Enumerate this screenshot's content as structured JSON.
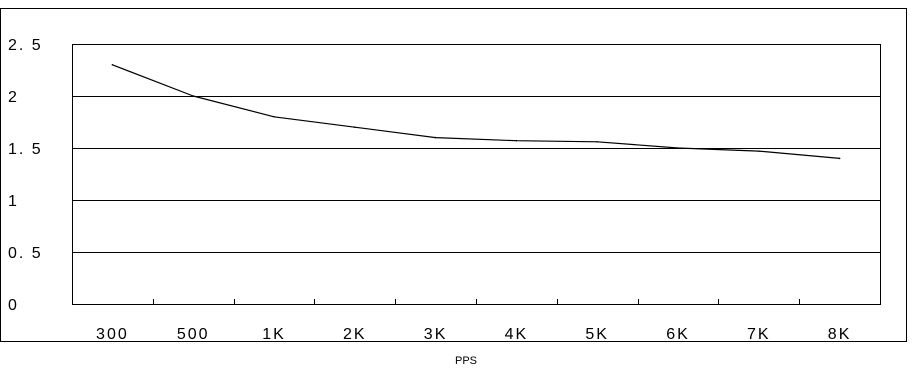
{
  "chart_data": {
    "type": "line",
    "title": "",
    "xlabel": "PPS",
    "ylabel": "",
    "categories": [
      "300",
      "500",
      "1K",
      "2K",
      "3K",
      "4K",
      "5K",
      "6K",
      "7K",
      "8K"
    ],
    "series": [
      {
        "values": [
          2.3,
          2.0,
          1.8,
          1.7,
          1.6,
          1.57,
          1.56,
          1.5,
          1.47,
          1.4
        ]
      }
    ],
    "ylim": [
      0,
      2.5
    ],
    "yticks": [
      0,
      0.5,
      1,
      1.5,
      2,
      2.5
    ],
    "ytick_labels": [
      "0",
      "0. 5",
      "1",
      "1. 5",
      "2",
      "2. 5"
    ],
    "grid": "horizontal",
    "legend": "none",
    "line_color": "#000000",
    "grid_color": "#000000"
  }
}
